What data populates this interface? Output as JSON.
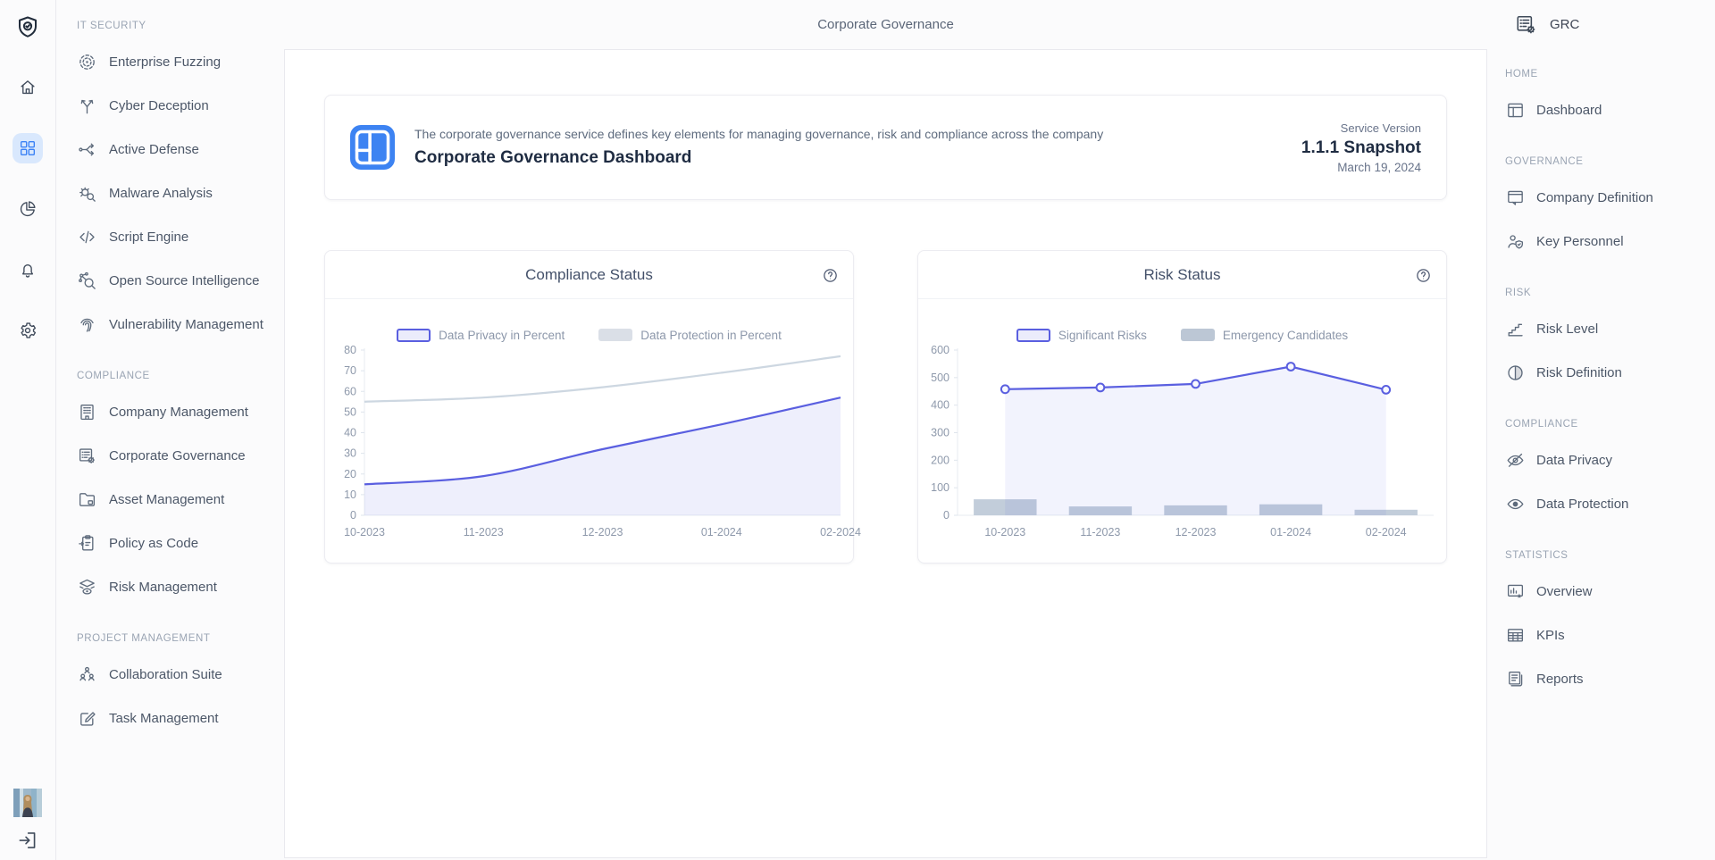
{
  "topbar": {
    "title": "Corporate Governance"
  },
  "rail": {
    "logo_icon": "shield-logo",
    "items": [
      {
        "name": "home",
        "icon": "home",
        "active": false
      },
      {
        "name": "apps",
        "icon": "grid",
        "active": true
      },
      {
        "name": "analytics",
        "icon": "pie",
        "active": false
      },
      {
        "name": "notifications",
        "icon": "bell",
        "active": false
      },
      {
        "name": "settings",
        "icon": "gear",
        "active": false
      }
    ],
    "bottom": {
      "avatar_alt": "user avatar",
      "logout_icon": "logout"
    }
  },
  "sidebar": {
    "sections": [
      {
        "title": "IT SECURITY",
        "items": [
          {
            "label": "Enterprise Fuzzing",
            "icon": "target-circles"
          },
          {
            "label": "Cyber Deception",
            "icon": "branch-y"
          },
          {
            "label": "Active Defense",
            "icon": "route-arrows"
          },
          {
            "label": "Malware Analysis",
            "icon": "bug-search"
          },
          {
            "label": "Script Engine",
            "icon": "code"
          },
          {
            "label": "Open Source Intelligence",
            "icon": "network-search"
          },
          {
            "label": "Vulnerability Management",
            "icon": "fingerprint"
          }
        ]
      },
      {
        "title": "COMPLIANCE",
        "items": [
          {
            "label": "Company Management",
            "icon": "building"
          },
          {
            "label": "Corporate Governance",
            "icon": "list-gear"
          },
          {
            "label": "Asset Management",
            "icon": "folder-box"
          },
          {
            "label": "Policy as Code",
            "icon": "clipboard-arrow"
          },
          {
            "label": "Risk Management",
            "icon": "layers-eye"
          }
        ]
      },
      {
        "title": "PROJECT MANAGEMENT",
        "items": [
          {
            "label": "Collaboration Suite",
            "icon": "users-group"
          },
          {
            "label": "Task Management",
            "icon": "task-edit"
          }
        ]
      }
    ]
  },
  "header_card": {
    "icon": "dashboard-tile",
    "description": "The corporate governance service defines key elements for managing governance, risk and compliance across the company",
    "title": "Corporate Governance Dashboard",
    "service_version_label": "Service Version",
    "version": "1.1.1 Snapshot",
    "date": "March 19, 2024",
    "tile_color": "#3d83f2"
  },
  "chart_data": [
    {
      "type": "area",
      "title": "Compliance Status",
      "categories": [
        "10-2023",
        "11-2023",
        "12-2023",
        "01-2024",
        "02-2024"
      ],
      "x_mode": "edge",
      "ylim": [
        0,
        80
      ],
      "yticks": [
        0,
        10,
        20,
        30,
        40,
        50,
        60,
        70,
        80
      ],
      "grid": false,
      "legend_position": "top-center",
      "series": [
        {
          "name": "Data Privacy in Percent",
          "type": "line",
          "smooth": true,
          "markers": false,
          "values": [
            15,
            19,
            32,
            44,
            57
          ],
          "color": "#5a5fe0",
          "area_fill": "rgba(92,96,224,0.10)",
          "legend": "outline",
          "legend_fill": "#ebecfb"
        },
        {
          "name": "Data Protection in Percent",
          "type": "line",
          "smooth": true,
          "markers": false,
          "values": [
            55,
            57,
            62,
            69,
            77
          ],
          "color": "#cdd7e1",
          "legend": "solid",
          "legend_color": "#dadfe7"
        }
      ]
    },
    {
      "type": "line+bar",
      "title": "Risk Status",
      "categories": [
        "10-2023",
        "11-2023",
        "12-2023",
        "01-2024",
        "02-2024"
      ],
      "x_mode": "band",
      "ylim": [
        0,
        600
      ],
      "yticks": [
        0,
        100,
        200,
        300,
        400,
        500,
        600
      ],
      "grid": false,
      "legend_position": "top-center",
      "series": [
        {
          "name": "Significant Risks",
          "type": "line",
          "smooth": false,
          "markers": true,
          "values": [
            458,
            464,
            477,
            540,
            456
          ],
          "color": "#5a5fe0",
          "area_fill": "rgba(92,96,224,0.08)",
          "legend": "outline",
          "legend_fill": "#ebecfb"
        },
        {
          "name": "Emergency Candidates",
          "type": "bar",
          "values": [
            58,
            32,
            36,
            40,
            20
          ],
          "color": "#c2cdda",
          "legend": "solid",
          "legend_color": "#bcc7d5"
        }
      ]
    }
  ],
  "right_sidebar": {
    "title": "GRC",
    "icon": "list-gear",
    "sections": [
      {
        "title": "HOME",
        "items": [
          {
            "label": "Dashboard",
            "icon": "panel-window"
          }
        ]
      },
      {
        "title": "GOVERNANCE",
        "items": [
          {
            "label": "Company Definition",
            "icon": "window-chat"
          },
          {
            "label": "Key Personnel",
            "icon": "user-shield"
          }
        ]
      },
      {
        "title": "RISK",
        "items": [
          {
            "label": "Risk Level",
            "icon": "stairs-chart"
          },
          {
            "label": "Risk Definition",
            "icon": "contrast-circle"
          }
        ]
      },
      {
        "title": "COMPLIANCE",
        "items": [
          {
            "label": "Data Privacy",
            "icon": "eye-off"
          },
          {
            "label": "Data Protection",
            "icon": "eye"
          }
        ]
      },
      {
        "title": "STATISTICS",
        "items": [
          {
            "label": "Overview",
            "icon": "chart-star"
          },
          {
            "label": "KPIs",
            "icon": "table"
          },
          {
            "label": "Reports",
            "icon": "pages"
          }
        ]
      }
    ]
  },
  "colors": {
    "accent_blue": "#3b82f6",
    "accent_blue_bg": "#d9e8fd",
    "accent_purple": "#5a5fe0",
    "purple_fill": "#ebecfb",
    "gray_line": "#cdd7e1",
    "bar_gray_blue": "#bcc7d5",
    "axis_text": "#8e99ab"
  }
}
